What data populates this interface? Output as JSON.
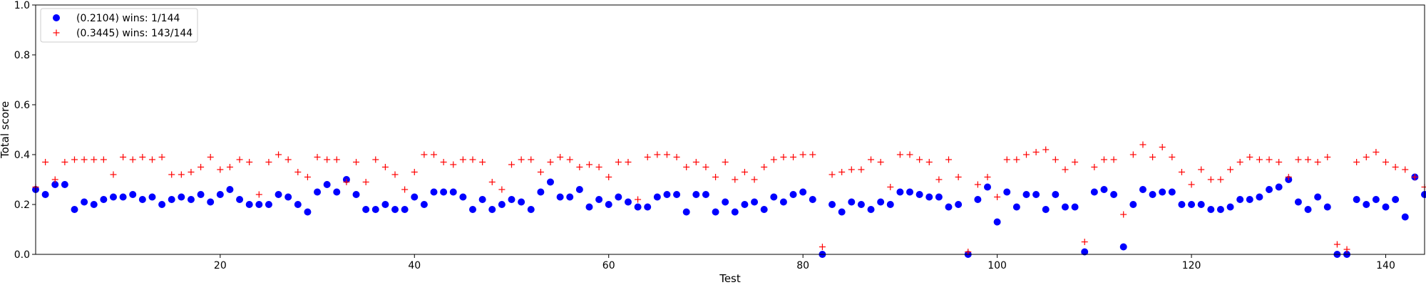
{
  "chart_data": {
    "type": "scatter",
    "title": "",
    "xlabel": "Test",
    "ylabel": "Total score",
    "xlim": [
      1,
      144
    ],
    "ylim": [
      0,
      1.0
    ],
    "xticks": [
      20,
      40,
      60,
      80,
      100,
      120,
      140
    ],
    "xtick_labels": [
      "20",
      "40",
      "60",
      "80",
      "100",
      "120",
      "140"
    ],
    "yticks": [
      0,
      0.2,
      0.4,
      0.6,
      0.8,
      1.0
    ],
    "ytick_labels": [
      "0.0",
      "0.2",
      "0.4",
      "0.6",
      "0.8",
      "1.0"
    ],
    "grid": false,
    "legend_position": "upper-left",
    "x": [
      1,
      2,
      3,
      4,
      5,
      6,
      7,
      8,
      9,
      10,
      11,
      12,
      13,
      14,
      15,
      16,
      17,
      18,
      19,
      20,
      21,
      22,
      23,
      24,
      25,
      26,
      27,
      28,
      29,
      30,
      31,
      32,
      33,
      34,
      35,
      36,
      37,
      38,
      39,
      40,
      41,
      42,
      43,
      44,
      45,
      46,
      47,
      48,
      49,
      50,
      51,
      52,
      53,
      54,
      55,
      56,
      57,
      58,
      59,
      60,
      61,
      62,
      63,
      64,
      65,
      66,
      67,
      68,
      69,
      70,
      71,
      72,
      73,
      74,
      75,
      76,
      77,
      78,
      79,
      80,
      81,
      82,
      83,
      84,
      85,
      86,
      87,
      88,
      89,
      90,
      91,
      92,
      93,
      94,
      95,
      96,
      97,
      98,
      99,
      100,
      101,
      102,
      103,
      104,
      105,
      106,
      107,
      108,
      109,
      110,
      111,
      112,
      113,
      114,
      115,
      116,
      117,
      118,
      119,
      120,
      121,
      122,
      123,
      124,
      125,
      126,
      127,
      128,
      129,
      130,
      131,
      132,
      133,
      134,
      135,
      136,
      137,
      138,
      139,
      140,
      141,
      142,
      143,
      144
    ],
    "series": [
      {
        "name": "(0.2104) wins: 1/144",
        "marker": "circle",
        "color": "#0000ff",
        "values": [
          0.26,
          0.24,
          0.28,
          0.28,
          0.18,
          0.21,
          0.2,
          0.22,
          0.23,
          0.23,
          0.24,
          0.22,
          0.23,
          0.2,
          0.22,
          0.23,
          0.22,
          0.24,
          0.21,
          0.24,
          0.26,
          0.22,
          0.2,
          0.2,
          0.2,
          0.24,
          0.23,
          0.2,
          0.17,
          0.25,
          0.28,
          0.25,
          0.3,
          0.24,
          0.18,
          0.18,
          0.2,
          0.18,
          0.18,
          0.23,
          0.2,
          0.25,
          0.25,
          0.25,
          0.23,
          0.18,
          0.22,
          0.18,
          0.2,
          0.22,
          0.21,
          0.18,
          0.25,
          0.29,
          0.23,
          0.23,
          0.26,
          0.19,
          0.22,
          0.2,
          0.23,
          0.21,
          0.19,
          0.19,
          0.23,
          0.24,
          0.24,
          0.17,
          0.24,
          0.24,
          0.17,
          0.21,
          0.17,
          0.2,
          0.21,
          0.18,
          0.23,
          0.21,
          0.24,
          0.25,
          0.22,
          0.0,
          0.2,
          0.17,
          0.21,
          0.2,
          0.18,
          0.21,
          0.2,
          0.25,
          0.25,
          0.24,
          0.23,
          0.23,
          0.19,
          0.2,
          0.0,
          0.22,
          0.27,
          0.13,
          0.25,
          0.19,
          0.24,
          0.24,
          0.18,
          0.24,
          0.19,
          0.19,
          0.01,
          0.25,
          0.26,
          0.24,
          0.03,
          0.2,
          0.26,
          0.24,
          0.25,
          0.25,
          0.2,
          0.2,
          0.2,
          0.18,
          0.18,
          0.19,
          0.22,
          0.22,
          0.23,
          0.26,
          0.27,
          0.3,
          0.21,
          0.18,
          0.23,
          0.19,
          0.0,
          0.0,
          0.22,
          0.2,
          0.22,
          0.19,
          0.22,
          0.15,
          0.31,
          0.24
        ]
      },
      {
        "name": "(0.3445) wins: 143/144",
        "marker": "plus",
        "color": "#ff0000",
        "values": [
          0.27,
          0.37,
          0.3,
          0.37,
          0.38,
          0.38,
          0.38,
          0.38,
          0.32,
          0.39,
          0.38,
          0.39,
          0.38,
          0.39,
          0.32,
          0.32,
          0.33,
          0.35,
          0.39,
          0.34,
          0.35,
          0.38,
          0.37,
          0.24,
          0.37,
          0.4,
          0.38,
          0.33,
          0.31,
          0.39,
          0.38,
          0.38,
          0.29,
          0.37,
          0.29,
          0.38,
          0.35,
          0.32,
          0.26,
          0.33,
          0.4,
          0.4,
          0.37,
          0.36,
          0.38,
          0.38,
          0.37,
          0.29,
          0.26,
          0.36,
          0.38,
          0.38,
          0.33,
          0.37,
          0.39,
          0.38,
          0.35,
          0.36,
          0.35,
          0.31,
          0.37,
          0.37,
          0.22,
          0.39,
          0.4,
          0.4,
          0.39,
          0.35,
          0.37,
          0.35,
          0.31,
          0.37,
          0.3,
          0.33,
          0.3,
          0.35,
          0.38,
          0.39,
          0.39,
          0.4,
          0.4,
          0.03,
          0.32,
          0.33,
          0.34,
          0.34,
          0.38,
          0.37,
          0.27,
          0.4,
          0.4,
          0.38,
          0.37,
          0.3,
          0.38,
          0.31,
          0.01,
          0.28,
          0.31,
          0.23,
          0.38,
          0.38,
          0.4,
          0.41,
          0.42,
          0.38,
          0.34,
          0.37,
          0.05,
          0.35,
          0.38,
          0.38,
          0.16,
          0.4,
          0.44,
          0.39,
          0.43,
          0.39,
          0.33,
          0.28,
          0.34,
          0.3,
          0.3,
          0.34,
          0.37,
          0.39,
          0.38,
          0.38,
          0.37,
          0.31,
          0.38,
          0.38,
          0.37,
          0.39,
          0.04,
          0.02,
          0.37,
          0.39,
          0.41,
          0.37,
          0.35,
          0.34,
          0.31,
          0.27
        ]
      }
    ]
  },
  "colors": {
    "series1": "#0000ff",
    "series2": "#ff0000",
    "axis": "#000000",
    "background": "#ffffff"
  }
}
